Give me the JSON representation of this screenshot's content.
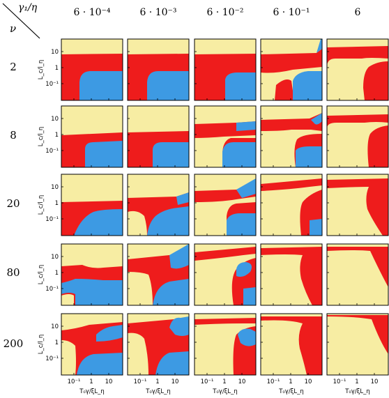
{
  "header": {
    "col_symbol": "γ₁/η",
    "row_symbol": "ν"
  },
  "columns": [
    "6 · 10⁻⁴",
    "6 · 10⁻³",
    "6 · 10⁻²",
    "6 · 10⁻¹",
    "6"
  ],
  "rows": [
    "2",
    "8",
    "20",
    "80",
    "200"
  ],
  "axes": {
    "ylabel": "L_c/l_η",
    "xlabel": "T₀γ/ξL_η",
    "yticks": [
      "10",
      "1",
      "10⁻¹"
    ],
    "xticks": [
      "10⁻¹",
      "1",
      "10"
    ]
  },
  "colors": {
    "yellow": "#f7eda3",
    "red": "#ee1c1c",
    "blue": "#3d9ae3",
    "frame": "#000000"
  }
}
